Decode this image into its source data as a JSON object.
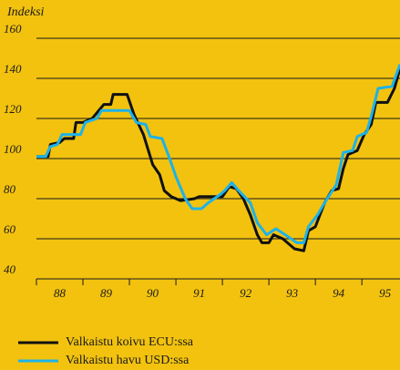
{
  "chart_data": {
    "type": "line",
    "y_axis_label": "Indeksi",
    "xlim": [
      1988,
      1995.82
    ],
    "ylim": [
      40,
      160
    ],
    "yticks": [
      40,
      60,
      80,
      100,
      120,
      140,
      160
    ],
    "xtick_marks": [
      1988,
      1989,
      1990,
      1991,
      1992,
      1993,
      1994,
      1995
    ],
    "xticks": [
      {
        "value": 1988.5,
        "label": "88"
      },
      {
        "value": 1989.5,
        "label": "89"
      },
      {
        "value": 1990.5,
        "label": "90"
      },
      {
        "value": 1991.5,
        "label": "91"
      },
      {
        "value": 1992.5,
        "label": "92"
      },
      {
        "value": 1993.5,
        "label": "93"
      },
      {
        "value": 1994.5,
        "label": "94"
      },
      {
        "value": 1995.5,
        "label": "95"
      }
    ],
    "grid": true,
    "series": [
      {
        "name": "Valkaistu koivu ECU:ssa",
        "color": "#111111",
        "x": [
          1988.0,
          1988.25,
          1988.3,
          1988.5,
          1988.6,
          1988.8,
          1988.85,
          1989.0,
          1989.2,
          1989.45,
          1989.6,
          1989.65,
          1989.95,
          1990.1,
          1990.3,
          1990.5,
          1990.65,
          1990.75,
          1990.9,
          1991.1,
          1991.4,
          1991.5,
          1991.9,
          1992.0,
          1992.15,
          1992.3,
          1992.45,
          1992.6,
          1992.75,
          1992.85,
          1993.0,
          1993.1,
          1993.3,
          1993.55,
          1993.75,
          1993.85,
          1994.0,
          1994.1,
          1994.2,
          1994.35,
          1994.5,
          1994.6,
          1994.7,
          1994.9,
          1995.05,
          1995.2,
          1995.3,
          1995.55,
          1995.7,
          1995.82
        ],
        "values": [
          101,
          101,
          107,
          108,
          110,
          110,
          118,
          118,
          120,
          127,
          127,
          132,
          132,
          122,
          112,
          97,
          92,
          84,
          81,
          79,
          80,
          81,
          81,
          81,
          86,
          85,
          80,
          72,
          62,
          58,
          58,
          62,
          60,
          55,
          54,
          64,
          66,
          72,
          78,
          84,
          85,
          95,
          102,
          104,
          112,
          117,
          128,
          128,
          135,
          145
        ]
      },
      {
        "name": "Valkaistu havu USD:ssa",
        "color": "#1eb2e8",
        "x": [
          1988.0,
          1988.2,
          1988.3,
          1988.45,
          1988.55,
          1988.95,
          1989.05,
          1989.3,
          1989.4,
          1990.0,
          1990.15,
          1990.35,
          1990.45,
          1990.7,
          1990.85,
          1991.0,
          1991.2,
          1991.35,
          1991.55,
          1991.7,
          1991.95,
          1992.05,
          1992.2,
          1992.35,
          1992.6,
          1992.75,
          1992.95,
          1993.15,
          1993.35,
          1993.6,
          1993.75,
          1993.85,
          1994.05,
          1994.2,
          1994.45,
          1994.6,
          1994.8,
          1994.9,
          1995.1,
          1995.2,
          1995.35,
          1995.65,
          1995.82
        ],
        "values": [
          101,
          101,
          106,
          107,
          112,
          112,
          118,
          120,
          124,
          124,
          118,
          117,
          111,
          110,
          101,
          91,
          80,
          75,
          75,
          78,
          82,
          84,
          88,
          84,
          78,
          68,
          62,
          65,
          62,
          58,
          58,
          66,
          72,
          78,
          87,
          103,
          104,
          111,
          113,
          121,
          135,
          136,
          147
        ]
      }
    ]
  }
}
